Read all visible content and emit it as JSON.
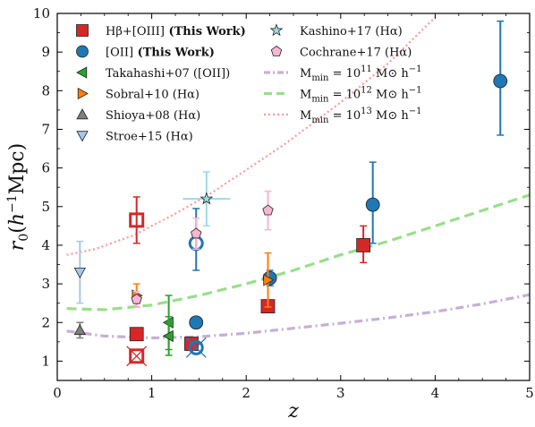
{
  "chart_data": {
    "type": "scatter",
    "xlabel": "z",
    "ylabel": "r0(h−1Mpc)",
    "xlim": [
      0,
      5
    ],
    "ylim": [
      0.5,
      10
    ],
    "x_ticks": [
      0,
      1,
      2,
      3,
      4,
      5
    ],
    "y_ticks": [
      1,
      2,
      3,
      4,
      5,
      6,
      7,
      8,
      9,
      10
    ],
    "series": [
      {
        "name": "Hβ+[OIII] (This Work)",
        "marker": "square",
        "color": "#d62728",
        "points": [
          {
            "x": 0.84,
            "y": 1.7,
            "yerr": [
              0,
              0
            ],
            "open": false
          },
          {
            "x": 1.42,
            "y": 1.45,
            "yerr": [
              0,
              0
            ],
            "open": false
          },
          {
            "x": 2.23,
            "y": 2.42,
            "yerr": [
              0.12,
              0.12
            ],
            "open": false
          },
          {
            "x": 3.24,
            "y": 4.0,
            "yerr": [
              0.45,
              0.5
            ],
            "open": false
          },
          {
            "x": 0.84,
            "y": 4.65,
            "yerr": [
              0.6,
              0.6
            ],
            "open": true
          },
          {
            "x": 0.84,
            "y": 1.13,
            "yerr": [
              0,
              0
            ],
            "open": true,
            "crossed": true
          }
        ]
      },
      {
        "name": "[OII] (This Work)",
        "marker": "circle",
        "color": "#1f77b4",
        "points": [
          {
            "x": 1.47,
            "y": 2.0,
            "yerr": [
              0.1,
              0.1
            ],
            "open": false
          },
          {
            "x": 2.25,
            "y": 3.15,
            "yerr": [
              0.2,
              0.2
            ],
            "open": false
          },
          {
            "x": 3.34,
            "y": 5.05,
            "yerr": [
              1.0,
              1.1
            ],
            "open": false
          },
          {
            "x": 4.69,
            "y": 8.25,
            "yerr": [
              1.4,
              1.55
            ],
            "open": false
          },
          {
            "x": 1.47,
            "y": 4.05,
            "yerr": [
              0.7,
              0.9
            ],
            "open": true
          },
          {
            "x": 1.47,
            "y": 1.35,
            "yerr": [
              0,
              0
            ],
            "open": true,
            "crossed": true
          }
        ]
      },
      {
        "name": "Takahashi+07 ([OII])",
        "marker": "triangle-left",
        "color": "#2ca02c",
        "points": [
          {
            "x": 1.18,
            "y": 2.0,
            "yerr": [
              0.7,
              0.7
            ]
          },
          {
            "x": 1.18,
            "y": 1.65,
            "yerr": [
              0.5,
              0.5
            ]
          }
        ]
      },
      {
        "name": "Sobral+10 (Hα)",
        "marker": "triangle-right",
        "color": "#ff7f0e",
        "points": [
          {
            "x": 0.84,
            "y": 2.7,
            "yerr": [
              0.3,
              0.3
            ]
          },
          {
            "x": 2.23,
            "y": 3.1,
            "yerr": [
              0.7,
              0.7
            ]
          }
        ]
      },
      {
        "name": "Shioya+08 (Hα)",
        "marker": "triangle-up",
        "color": "#7f7f7f",
        "points": [
          {
            "x": 0.24,
            "y": 1.8,
            "yerr": [
              0.2,
              0.2
            ]
          }
        ]
      },
      {
        "name": "Stroe+15 (Hα)",
        "marker": "triangle-down",
        "color": "#a6c8ea",
        "points": [
          {
            "x": 0.24,
            "y": 3.3,
            "yerr": [
              0.8,
              0.8
            ]
          }
        ]
      },
      {
        "name": "Kashino+17 (Hα)",
        "marker": "star",
        "color": "#9edae5",
        "points": [
          {
            "x": 1.58,
            "y": 5.2,
            "yerr": [
              0.7,
              0.7
            ],
            "xerr": [
              0.25,
              0.25
            ]
          }
        ]
      },
      {
        "name": "Cochrane+17 (Hα)",
        "marker": "pentagon",
        "color": "#f7b6d2",
        "points": [
          {
            "x": 0.84,
            "y": 2.6,
            "yerr": [
              0.2,
              0.2
            ]
          },
          {
            "x": 1.47,
            "y": 4.3,
            "yerr": [
              0.4,
              0.4
            ]
          },
          {
            "x": 2.23,
            "y": 4.9,
            "yerr": [
              0.5,
              0.5
            ]
          }
        ]
      }
    ],
    "curves": [
      {
        "name": "Mmin = 1011 M⊙ h−1",
        "color": "#c5b0d5",
        "style": "dashdot",
        "x": [
          0.1,
          0.5,
          1.0,
          1.5,
          2.0,
          2.5,
          3.0,
          3.5,
          4.0,
          4.5,
          5.0
        ],
        "y": [
          1.78,
          1.65,
          1.6,
          1.63,
          1.72,
          1.85,
          1.98,
          2.12,
          2.28,
          2.48,
          2.72
        ]
      },
      {
        "name": "Mmin = 1012 M⊙ h−1",
        "color": "#98df8a",
        "style": "dashed",
        "x": [
          0.1,
          0.5,
          1.0,
          1.5,
          2.0,
          2.5,
          3.0,
          3.5,
          4.0,
          4.5,
          5.0
        ],
        "y": [
          2.36,
          2.33,
          2.45,
          2.7,
          3.0,
          3.35,
          3.75,
          4.1,
          4.5,
          4.9,
          5.3
        ]
      },
      {
        "name": "Mmin = 1013 M⊙ h−1",
        "color": "#ff9896",
        "style": "dotted",
        "x": [
          0.1,
          0.4,
          0.8,
          1.2,
          1.6,
          2.0,
          2.4,
          3.0,
          3.5,
          4.0
        ],
        "y": [
          3.75,
          3.9,
          4.25,
          4.75,
          5.3,
          5.95,
          6.6,
          7.7,
          8.7,
          9.9
        ]
      }
    ],
    "legend": {
      "placement": "top-left",
      "entries": [
        {
          "marker": "square",
          "color": "#d62728",
          "text": "Hβ+[OIII]",
          "bold_text": "(This Work)"
        },
        {
          "marker": "circle",
          "color": "#1f77b4",
          "text": "[OII]",
          "bold_text": "(This Work)"
        },
        {
          "marker": "triangle-left",
          "color": "#2ca02c",
          "text": "Takahashi+07 ([OII])",
          "bold_text": ""
        },
        {
          "marker": "triangle-right",
          "color": "#ff7f0e",
          "text": "Sobral+10 (Hα)",
          "bold_text": ""
        },
        {
          "marker": "triangle-up",
          "color": "#7f7f7f",
          "text": "Shioya+08 (Hα)",
          "bold_text": ""
        },
        {
          "marker": "triangle-down",
          "color": "#a6c8ea",
          "text": "Stroe+15 (Hα)",
          "bold_text": ""
        },
        {
          "marker": "star",
          "color": "#9edae5",
          "text": "Kashino+17 (Hα)",
          "bold_text": ""
        },
        {
          "marker": "pentagon",
          "color": "#f7b6d2",
          "text": "Cochrane+17 (Hα)",
          "bold_text": ""
        },
        {
          "marker": "dashdot",
          "color": "#c5b0d5",
          "text": "Mmin = 1011 M⊙ h−1",
          "bold_text": ""
        },
        {
          "marker": "dashed",
          "color": "#98df8a",
          "text": "Mmin = 1012 M⊙ h−1",
          "bold_text": ""
        },
        {
          "marker": "dotted",
          "color": "#ff9896",
          "text": "Mmin = 1013 M⊙ h−1",
          "bold_text": ""
        }
      ]
    }
  }
}
